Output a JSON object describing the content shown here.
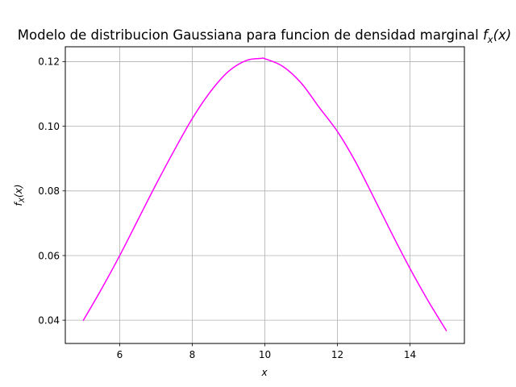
{
  "chart_data": {
    "type": "line",
    "title_text": "Modelo de distribucion Gaussiana para funcion de densidad marginal ",
    "title_math": "f",
    "title_math_sub": "x",
    "title_math_arg": "(x)",
    "xlabel": "x",
    "ylabel_math": "f",
    "ylabel_math_sub": "X",
    "ylabel_math_arg": "(x)",
    "xlim": [
      4.5,
      15.5
    ],
    "ylim": [
      0.0328,
      0.1246
    ],
    "xticks": [
      6,
      8,
      10,
      12,
      14
    ],
    "xtick_labels": [
      "6",
      "8",
      "10",
      "12",
      "14"
    ],
    "yticks": [
      0.04,
      0.06,
      0.08,
      0.1,
      0.12
    ],
    "ytick_labels": [
      "0.04",
      "0.06",
      "0.08",
      "0.10",
      "0.12"
    ],
    "grid": true,
    "series": [
      {
        "color": "#ff00ff",
        "x": [
          5.0,
          5.5,
          6.0,
          6.5,
          7.0,
          7.5,
          8.0,
          8.5,
          9.0,
          9.5,
          9.9,
          10.0,
          10.5,
          11.0,
          11.5,
          12.0,
          12.5,
          13.0,
          13.5,
          14.0,
          14.5,
          15.0
        ],
        "y": [
          0.04,
          0.0497,
          0.06,
          0.071,
          0.082,
          0.0925,
          0.1024,
          0.1107,
          0.117,
          0.1204,
          0.121,
          0.1209,
          0.1185,
          0.1134,
          0.1058,
          0.0984,
          0.089,
          0.078,
          0.0668,
          0.056,
          0.046,
          0.0368
        ]
      }
    ]
  }
}
